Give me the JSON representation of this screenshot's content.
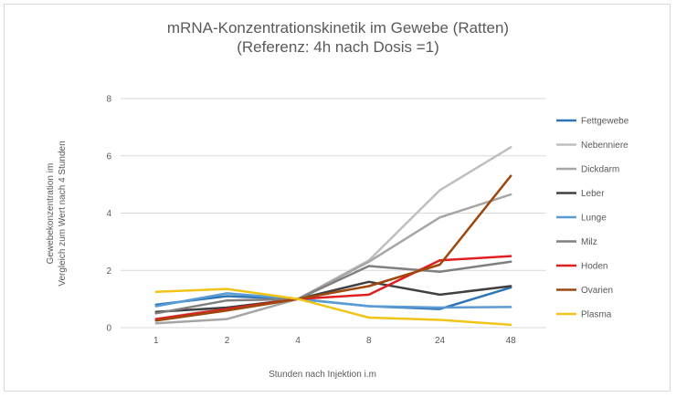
{
  "chart_data": {
    "type": "line",
    "title": "mRNA-Konzentrationskinetik im Gewebe (Ratten)",
    "subtitle": "(Referenz: 4h nach Dosis =1)",
    "xlabel": "Stunden nach Injektion i.m",
    "ylabel": [
      "Gewebekonzentration im",
      "Vergleich zum Wert nach 4 Stunden"
    ],
    "categories": [
      "1",
      "2",
      "4",
      "8",
      "24",
      "48"
    ],
    "ylim": [
      0,
      8
    ],
    "yticks": [
      "0",
      "2",
      "4",
      "6",
      "8"
    ],
    "grid": true,
    "legend_position": "right",
    "series": [
      {
        "name": "Fettgewebe",
        "color": "#2e75b6",
        "values": [
          0.8,
          1.1,
          1.0,
          0.75,
          0.65,
          1.4
        ]
      },
      {
        "name": "Nebenniere",
        "color": "#bfbfbf",
        "values": [
          0.3,
          0.7,
          1.0,
          2.35,
          4.8,
          6.3
        ]
      },
      {
        "name": "Dickdarm",
        "color": "#a6a6a6",
        "values": [
          0.15,
          0.3,
          1.0,
          2.3,
          3.85,
          4.65
        ]
      },
      {
        "name": "Leber",
        "color": "#404040",
        "values": [
          0.55,
          0.7,
          1.0,
          1.6,
          1.15,
          1.45
        ]
      },
      {
        "name": "Lunge",
        "color": "#5b9bd5",
        "values": [
          0.75,
          1.2,
          1.0,
          0.75,
          0.7,
          0.72
        ]
      },
      {
        "name": "Milz",
        "color": "#7f7f7f",
        "values": [
          0.5,
          0.95,
          1.0,
          2.15,
          1.95,
          2.3
        ]
      },
      {
        "name": "Hoden",
        "color": "#e02020",
        "values": [
          0.3,
          0.65,
          1.0,
          1.15,
          2.35,
          2.5
        ]
      },
      {
        "name": "Ovarien",
        "color": "#9e480e",
        "values": [
          0.25,
          0.6,
          1.0,
          1.45,
          2.2,
          5.3
        ]
      },
      {
        "name": "Plasma",
        "color": "#f2c418",
        "values": [
          1.25,
          1.35,
          1.0,
          0.35,
          0.27,
          0.1
        ]
      }
    ]
  }
}
